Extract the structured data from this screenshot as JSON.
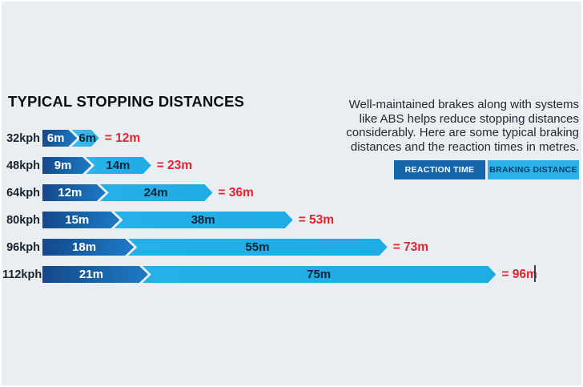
{
  "chart_data": {
    "type": "bar",
    "title": "TYPICAL STOPPING DISTANCES",
    "unit": "m",
    "categories": [
      "32kph",
      "48kph",
      "64kph",
      "80kph",
      "96kph",
      "112kph"
    ],
    "series": [
      {
        "name": "REACTION TIME",
        "values": [
          6,
          9,
          12,
          15,
          18,
          21
        ]
      },
      {
        "name": "BRAKING DISTANCE",
        "values": [
          6,
          14,
          24,
          38,
          55,
          75
        ]
      }
    ],
    "totals": [
      12,
      23,
      36,
      53,
      73,
      96
    ],
    "legend_position": "top-right",
    "grid": false,
    "rows": [
      {
        "speed": "32kph",
        "reaction_m": 6,
        "braking_m": 6,
        "total_m": 12,
        "reaction_label": "6m",
        "braking_label": "6m",
        "total_label": "= 12m"
      },
      {
        "speed": "48kph",
        "reaction_m": 9,
        "braking_m": 14,
        "total_m": 23,
        "reaction_label": "9m",
        "braking_label": "14m",
        "total_label": "= 23m"
      },
      {
        "speed": "64kph",
        "reaction_m": 12,
        "braking_m": 24,
        "total_m": 36,
        "reaction_label": "12m",
        "braking_label": "24m",
        "total_label": "= 36m"
      },
      {
        "speed": "80kph",
        "reaction_m": 15,
        "braking_m": 38,
        "total_m": 53,
        "reaction_label": "15m",
        "braking_label": "38m",
        "total_label": "= 53m"
      },
      {
        "speed": "96kph",
        "reaction_m": 18,
        "braking_m": 55,
        "total_m": 73,
        "reaction_label": "18m",
        "braking_label": "55m",
        "total_label": "= 73m"
      },
      {
        "speed": "112kph",
        "reaction_m": 21,
        "braking_m": 75,
        "total_m": 96,
        "reaction_label": "21m",
        "braking_label": "75m",
        "total_label": "= 96m"
      }
    ],
    "colors": {
      "reaction_bar": "#1565a9",
      "braking_bar": "#29b1e8",
      "total_text": "#e8212d",
      "background": "#e9eef3"
    }
  },
  "aside": {
    "lines": [
      "Well-maintained brakes along with systems",
      "like ABS helps reduce stopping distances",
      "considerably. Here are some typical braking",
      "distances and the reaction times in metres."
    ]
  },
  "legend": {
    "reaction": "REACTION TIME",
    "braking": "BRAKING DISTANCE"
  }
}
